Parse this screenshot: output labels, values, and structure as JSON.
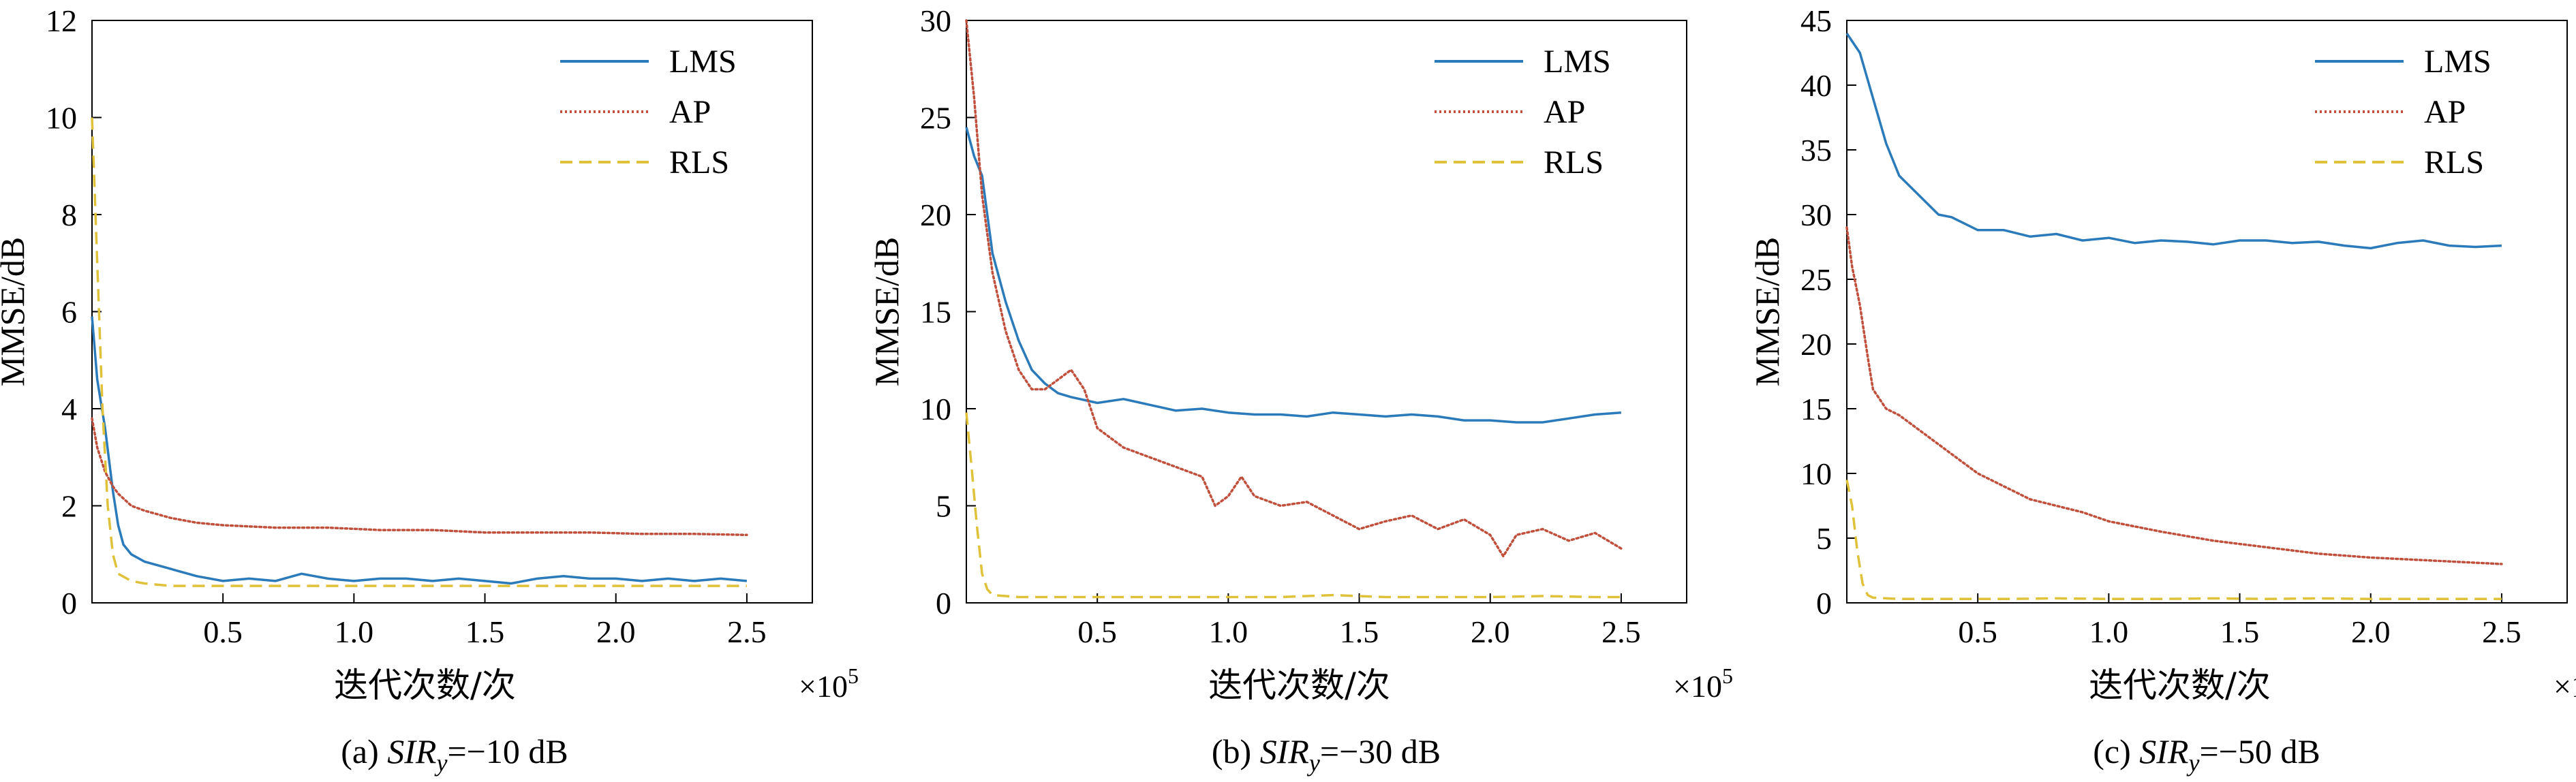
{
  "figure": {
    "type": "line-chart-panel-set",
    "x_multiplier": "×10",
    "x_multiplier_exp": "5"
  },
  "chart_data": [
    {
      "type": "line",
      "caption_prefix": "(a) ",
      "caption_var": "SIR",
      "caption_sub": "y",
      "caption_suffix": "=−10 dB",
      "xlabel": "迭代次数/次",
      "ylabel": "MMSE/dB",
      "xlim": [
        0,
        2.75
      ],
      "ylim": [
        0,
        12
      ],
      "xticks": [
        0.5,
        1.0,
        1.5,
        2.0,
        2.5
      ],
      "xtick_labels": [
        "0.5",
        "1.0",
        "1.5",
        "2.0",
        "2.5"
      ],
      "yticks": [
        0,
        2,
        4,
        6,
        8,
        10,
        12
      ],
      "ytick_labels": [
        "0",
        "2",
        "4",
        "6",
        "8",
        "10",
        "12"
      ],
      "legend_position": "top-right",
      "series": [
        {
          "name": "LMS",
          "color": "#2b7bba",
          "dash": "solid",
          "x": [
            0,
            0.02,
            0.05,
            0.08,
            0.1,
            0.12,
            0.15,
            0.2,
            0.3,
            0.4,
            0.5,
            0.6,
            0.7,
            0.8,
            0.9,
            1.0,
            1.1,
            1.2,
            1.3,
            1.4,
            1.5,
            1.6,
            1.7,
            1.8,
            1.9,
            2.0,
            2.1,
            2.2,
            2.3,
            2.4,
            2.5
          ],
          "y": [
            5.9,
            4.6,
            3.6,
            2.3,
            1.6,
            1.2,
            1.0,
            0.85,
            0.7,
            0.55,
            0.45,
            0.5,
            0.45,
            0.6,
            0.5,
            0.45,
            0.5,
            0.5,
            0.45,
            0.5,
            0.45,
            0.4,
            0.5,
            0.55,
            0.5,
            0.5,
            0.45,
            0.5,
            0.45,
            0.5,
            0.45
          ]
        },
        {
          "name": "AP",
          "color": "#c0503c",
          "dash": "dotted",
          "x": [
            0,
            0.02,
            0.05,
            0.08,
            0.1,
            0.15,
            0.2,
            0.3,
            0.4,
            0.5,
            0.7,
            0.9,
            1.1,
            1.3,
            1.5,
            1.7,
            1.9,
            2.1,
            2.3,
            2.5
          ],
          "y": [
            3.8,
            3.2,
            2.7,
            2.4,
            2.25,
            2.0,
            1.9,
            1.75,
            1.65,
            1.6,
            1.55,
            1.55,
            1.5,
            1.5,
            1.45,
            1.45,
            1.45,
            1.42,
            1.42,
            1.4
          ]
        },
        {
          "name": "RLS",
          "color": "#e0c23a",
          "dash": "dashed",
          "x": [
            0,
            0.02,
            0.04,
            0.06,
            0.08,
            0.1,
            0.15,
            0.2,
            0.3,
            0.5,
            0.7,
            0.9,
            1.1,
            1.3,
            1.5,
            1.7,
            1.9,
            2.1,
            2.3,
            2.5
          ],
          "y": [
            10.0,
            7.0,
            4.0,
            2.0,
            1.0,
            0.6,
            0.45,
            0.4,
            0.35,
            0.35,
            0.35,
            0.35,
            0.35,
            0.35,
            0.35,
            0.35,
            0.35,
            0.35,
            0.35,
            0.35
          ]
        }
      ]
    },
    {
      "type": "line",
      "caption_prefix": "(b) ",
      "caption_var": "SIR",
      "caption_sub": "y",
      "caption_suffix": "=−30 dB",
      "xlabel": "迭代次数/次",
      "ylabel": "MMSE/dB",
      "xlim": [
        0,
        2.75
      ],
      "ylim": [
        0,
        30
      ],
      "xticks": [
        0.5,
        1.0,
        1.5,
        2.0,
        2.5
      ],
      "xtick_labels": [
        "0.5",
        "1.0",
        "1.5",
        "2.0",
        "2.5"
      ],
      "yticks": [
        0,
        5,
        10,
        15,
        20,
        25,
        30
      ],
      "ytick_labels": [
        "0",
        "5",
        "10",
        "15",
        "20",
        "25",
        "30"
      ],
      "legend_position": "top-right",
      "series": [
        {
          "name": "LMS",
          "color": "#2b7bba",
          "dash": "solid",
          "x": [
            0,
            0.03,
            0.06,
            0.1,
            0.15,
            0.2,
            0.25,
            0.3,
            0.35,
            0.4,
            0.5,
            0.6,
            0.7,
            0.8,
            0.9,
            1.0,
            1.1,
            1.2,
            1.3,
            1.4,
            1.5,
            1.6,
            1.7,
            1.8,
            1.9,
            2.0,
            2.1,
            2.2,
            2.3,
            2.4,
            2.5
          ],
          "y": [
            24.5,
            23.0,
            22.0,
            18.0,
            15.5,
            13.5,
            12.0,
            11.3,
            10.8,
            10.6,
            10.3,
            10.5,
            10.2,
            9.9,
            10.0,
            9.8,
            9.7,
            9.7,
            9.6,
            9.8,
            9.7,
            9.6,
            9.7,
            9.6,
            9.4,
            9.4,
            9.3,
            9.3,
            9.5,
            9.7,
            9.8
          ]
        },
        {
          "name": "AP",
          "color": "#c0503c",
          "dash": "dotted",
          "x": [
            0,
            0.03,
            0.06,
            0.1,
            0.15,
            0.2,
            0.25,
            0.3,
            0.35,
            0.4,
            0.45,
            0.5,
            0.6,
            0.7,
            0.8,
            0.9,
            0.95,
            1.0,
            1.05,
            1.1,
            1.2,
            1.3,
            1.4,
            1.5,
            1.6,
            1.7,
            1.8,
            1.9,
            2.0,
            2.05,
            2.1,
            2.2,
            2.3,
            2.4,
            2.5
          ],
          "y": [
            30.0,
            26.0,
            21.0,
            17.0,
            14.0,
            12.0,
            11.0,
            11.0,
            11.5,
            12.0,
            11.0,
            9.0,
            8.0,
            7.5,
            7.0,
            6.5,
            5.0,
            5.5,
            6.5,
            5.5,
            5.0,
            5.2,
            4.5,
            3.8,
            4.2,
            4.5,
            3.8,
            4.3,
            3.5,
            2.4,
            3.5,
            3.8,
            3.2,
            3.6,
            2.8
          ]
        },
        {
          "name": "RLS",
          "color": "#e0c23a",
          "dash": "dashed",
          "x": [
            0,
            0.02,
            0.04,
            0.06,
            0.08,
            0.1,
            0.15,
            0.2,
            0.4,
            0.6,
            0.8,
            1.0,
            1.2,
            1.4,
            1.6,
            1.8,
            2.0,
            2.2,
            2.4,
            2.5
          ],
          "y": [
            9.8,
            7.0,
            4.0,
            1.5,
            0.7,
            0.4,
            0.35,
            0.3,
            0.3,
            0.3,
            0.3,
            0.3,
            0.3,
            0.4,
            0.3,
            0.3,
            0.3,
            0.35,
            0.3,
            0.3
          ]
        }
      ]
    },
    {
      "type": "line",
      "caption_prefix": "(c) ",
      "caption_var": "SIR",
      "caption_sub": "y",
      "caption_suffix": "=−50 dB",
      "xlabel": "迭代次数/次",
      "ylabel": "MMSE/dB",
      "xlim": [
        0,
        2.75
      ],
      "ylim": [
        0,
        45
      ],
      "xticks": [
        0.5,
        1.0,
        1.5,
        2.0,
        2.5
      ],
      "xtick_labels": [
        "0.5",
        "1.0",
        "1.5",
        "2.0",
        "2.5"
      ],
      "yticks": [
        0,
        5,
        10,
        15,
        20,
        25,
        30,
        35,
        40,
        45
      ],
      "ytick_labels": [
        "0",
        "5",
        "10",
        "15",
        "20",
        "25",
        "30",
        "35",
        "40",
        "45"
      ],
      "legend_position": "top-right",
      "series": [
        {
          "name": "LMS",
          "color": "#2b7bba",
          "dash": "solid",
          "x": [
            0,
            0.05,
            0.1,
            0.15,
            0.2,
            0.25,
            0.3,
            0.35,
            0.4,
            0.5,
            0.6,
            0.7,
            0.8,
            0.9,
            1.0,
            1.1,
            1.2,
            1.3,
            1.4,
            1.5,
            1.6,
            1.7,
            1.8,
            1.9,
            2.0,
            2.1,
            2.2,
            2.3,
            2.4,
            2.5
          ],
          "y": [
            44.0,
            42.5,
            39.0,
            35.5,
            33.0,
            32.0,
            31.0,
            30.0,
            29.8,
            28.8,
            28.8,
            28.3,
            28.5,
            28.0,
            28.2,
            27.8,
            28.0,
            27.9,
            27.7,
            28.0,
            28.0,
            27.8,
            27.9,
            27.6,
            27.4,
            27.8,
            28.0,
            27.6,
            27.5,
            27.6
          ]
        },
        {
          "name": "AP",
          "color": "#c0503c",
          "dash": "dotted",
          "x": [
            0,
            0.02,
            0.05,
            0.08,
            0.1,
            0.15,
            0.2,
            0.3,
            0.4,
            0.5,
            0.6,
            0.7,
            0.8,
            0.9,
            1.0,
            1.2,
            1.4,
            1.6,
            1.8,
            2.0,
            2.2,
            2.4,
            2.5
          ],
          "y": [
            29.0,
            26.0,
            23.0,
            19.0,
            16.5,
            15.0,
            14.5,
            13.0,
            11.5,
            10.0,
            9.0,
            8.0,
            7.5,
            7.0,
            6.3,
            5.5,
            4.8,
            4.3,
            3.8,
            3.5,
            3.3,
            3.1,
            3.0
          ]
        },
        {
          "name": "RLS",
          "color": "#e0c23a",
          "dash": "dashed",
          "x": [
            0,
            0.02,
            0.04,
            0.06,
            0.08,
            0.1,
            0.15,
            0.2,
            0.4,
            0.6,
            0.8,
            1.0,
            1.2,
            1.4,
            1.6,
            1.8,
            2.0,
            2.2,
            2.4,
            2.5
          ],
          "y": [
            9.5,
            7.5,
            4.0,
            1.5,
            0.6,
            0.4,
            0.35,
            0.3,
            0.3,
            0.3,
            0.35,
            0.3,
            0.3,
            0.35,
            0.3,
            0.35,
            0.3,
            0.3,
            0.3,
            0.3
          ]
        }
      ]
    }
  ]
}
